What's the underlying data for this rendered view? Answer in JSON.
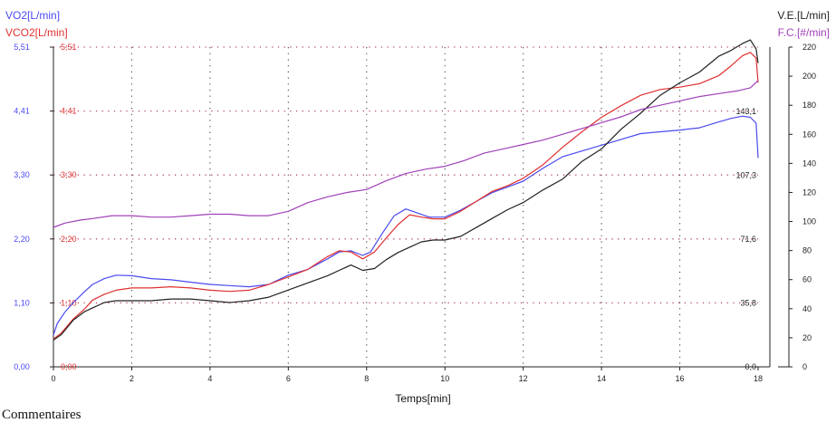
{
  "chart_data": {
    "type": "line",
    "xlabel": "Temps[min]",
    "xlim": [
      0,
      18
    ],
    "x_ticks": [
      "0",
      "2",
      "4",
      "6",
      "8",
      "10",
      "12",
      "14",
      "16",
      "18"
    ],
    "axes": {
      "vo2": {
        "label": "VO2[L/min]",
        "color": "#4a4af0",
        "ylim": [
          0,
          5.51
        ],
        "ticks": [
          "0,00",
          "1,10",
          "2,20",
          "3,30",
          "4,41",
          "5,51"
        ]
      },
      "vco2": {
        "label": "VCO2[L/min]",
        "color": "#e03030",
        "ylim": [
          0,
          5.51
        ],
        "ticks": [
          "0;00",
          "1;10",
          "2;20",
          "3;30",
          "4;41",
          "5;51"
        ]
      },
      "ve": {
        "label": "V.E.[L/min]",
        "color": "#222222",
        "ylim": [
          0,
          179
        ],
        "ticks": [
          "0,0",
          "35,8",
          "71,6",
          "107,3",
          "143,1"
        ]
      },
      "fc": {
        "label": "F.C.[#/min]",
        "color": "#a040b8",
        "ylim": [
          0,
          220
        ],
        "ticks": [
          "0",
          "20",
          "40",
          "60",
          "80",
          "100",
          "120",
          "140",
          "160",
          "180",
          "200",
          "220"
        ]
      }
    },
    "grid": true,
    "series": [
      {
        "key": "vo2",
        "axis": "vo2",
        "color": "#4a4af0",
        "x": [
          0,
          0.1,
          0.3,
          0.5,
          0.8,
          1.0,
          1.3,
          1.6,
          2.0,
          2.5,
          3.0,
          3.5,
          4.0,
          4.5,
          5.0,
          5.5,
          6.0,
          6.5,
          7.0,
          7.3,
          7.6,
          7.9,
          8.1,
          8.4,
          8.7,
          9.0,
          9.3,
          9.6,
          10.0,
          10.4,
          10.8,
          11.2,
          11.6,
          12.0,
          12.5,
          13.0,
          13.5,
          14.0,
          14.5,
          15.0,
          15.5,
          16.0,
          16.5,
          17.0,
          17.3,
          17.6,
          17.8,
          17.95,
          18.0
        ],
        "y": [
          0.55,
          0.75,
          0.95,
          1.1,
          1.3,
          1.42,
          1.52,
          1.58,
          1.57,
          1.52,
          1.5,
          1.46,
          1.42,
          1.4,
          1.38,
          1.42,
          1.58,
          1.68,
          1.86,
          1.98,
          2.0,
          1.92,
          1.98,
          2.3,
          2.6,
          2.72,
          2.65,
          2.58,
          2.58,
          2.7,
          2.85,
          3.0,
          3.1,
          3.2,
          3.42,
          3.62,
          3.72,
          3.82,
          3.92,
          4.02,
          4.05,
          4.08,
          4.12,
          4.22,
          4.28,
          4.32,
          4.3,
          4.2,
          3.6
        ]
      },
      {
        "key": "vco2",
        "axis": "vco2",
        "color": "#e03030",
        "x": [
          0,
          0.2,
          0.5,
          0.8,
          1.0,
          1.3,
          1.6,
          2.0,
          2.5,
          3.0,
          3.5,
          4.0,
          4.5,
          5.0,
          5.5,
          6.0,
          6.5,
          7.0,
          7.3,
          7.6,
          7.9,
          8.2,
          8.5,
          8.8,
          9.1,
          9.4,
          9.7,
          10.0,
          10.4,
          10.8,
          11.2,
          11.6,
          12.0,
          12.5,
          13.0,
          13.5,
          14.0,
          14.5,
          15.0,
          15.5,
          16.0,
          16.5,
          17.0,
          17.3,
          17.6,
          17.8,
          17.95,
          18.0
        ],
        "y": [
          0.48,
          0.58,
          0.82,
          1.0,
          1.15,
          1.25,
          1.32,
          1.36,
          1.36,
          1.38,
          1.36,
          1.32,
          1.3,
          1.32,
          1.42,
          1.55,
          1.68,
          1.9,
          2.0,
          1.98,
          1.86,
          1.98,
          2.22,
          2.45,
          2.62,
          2.58,
          2.55,
          2.55,
          2.68,
          2.85,
          3.02,
          3.12,
          3.25,
          3.48,
          3.78,
          4.05,
          4.3,
          4.5,
          4.68,
          4.78,
          4.82,
          4.88,
          5.02,
          5.18,
          5.36,
          5.42,
          5.32,
          4.9
        ]
      },
      {
        "key": "ve",
        "axis": "ve",
        "color": "#222222",
        "x": [
          0,
          0.2,
          0.5,
          0.8,
          1.0,
          1.3,
          1.6,
          2.0,
          2.5,
          3.0,
          3.5,
          4.0,
          4.5,
          5.0,
          5.5,
          6.0,
          6.5,
          7.0,
          7.3,
          7.6,
          7.9,
          8.2,
          8.5,
          8.8,
          9.1,
          9.4,
          9.7,
          10.0,
          10.4,
          10.8,
          11.2,
          11.6,
          12.0,
          12.5,
          13.0,
          13.5,
          14.0,
          14.5,
          15.0,
          15.5,
          16.0,
          16.5,
          17.0,
          17.3,
          17.6,
          17.8,
          17.95,
          18.0
        ],
        "y": [
          15,
          18,
          26,
          31,
          33,
          36,
          37,
          37,
          37,
          38,
          38,
          37,
          36,
          37,
          39,
          43,
          47,
          51,
          54,
          57,
          54,
          55,
          60,
          64,
          67,
          70,
          71,
          71,
          73,
          78,
          83,
          88,
          92,
          99,
          105,
          115,
          122,
          133,
          142,
          152,
          159,
          165,
          174,
          177,
          181,
          183,
          178,
          170
        ]
      },
      {
        "key": "fc",
        "axis": "fc",
        "color": "#a040b8",
        "x": [
          0,
          0.3,
          0.7,
          1.0,
          1.5,
          2.0,
          2.5,
          3.0,
          3.5,
          4.0,
          4.5,
          5.0,
          5.5,
          6.0,
          6.5,
          7.0,
          7.5,
          8.0,
          8.5,
          9.0,
          9.5,
          10.0,
          10.5,
          11.0,
          11.5,
          12.0,
          12.5,
          13.0,
          13.5,
          14.0,
          14.5,
          15.0,
          15.5,
          16.0,
          16.5,
          17.0,
          17.5,
          17.8,
          18.0
        ],
        "y": [
          96,
          99,
          101,
          102,
          104,
          104,
          103,
          103,
          104,
          105,
          105,
          104,
          104,
          107,
          113,
          117,
          120,
          122,
          128,
          133,
          136,
          138,
          142,
          147,
          150,
          153,
          156,
          160,
          164,
          168,
          172,
          177,
          180,
          183,
          186,
          188,
          190,
          192,
          197
        ]
      }
    ]
  },
  "comment_label": "Commentaires"
}
